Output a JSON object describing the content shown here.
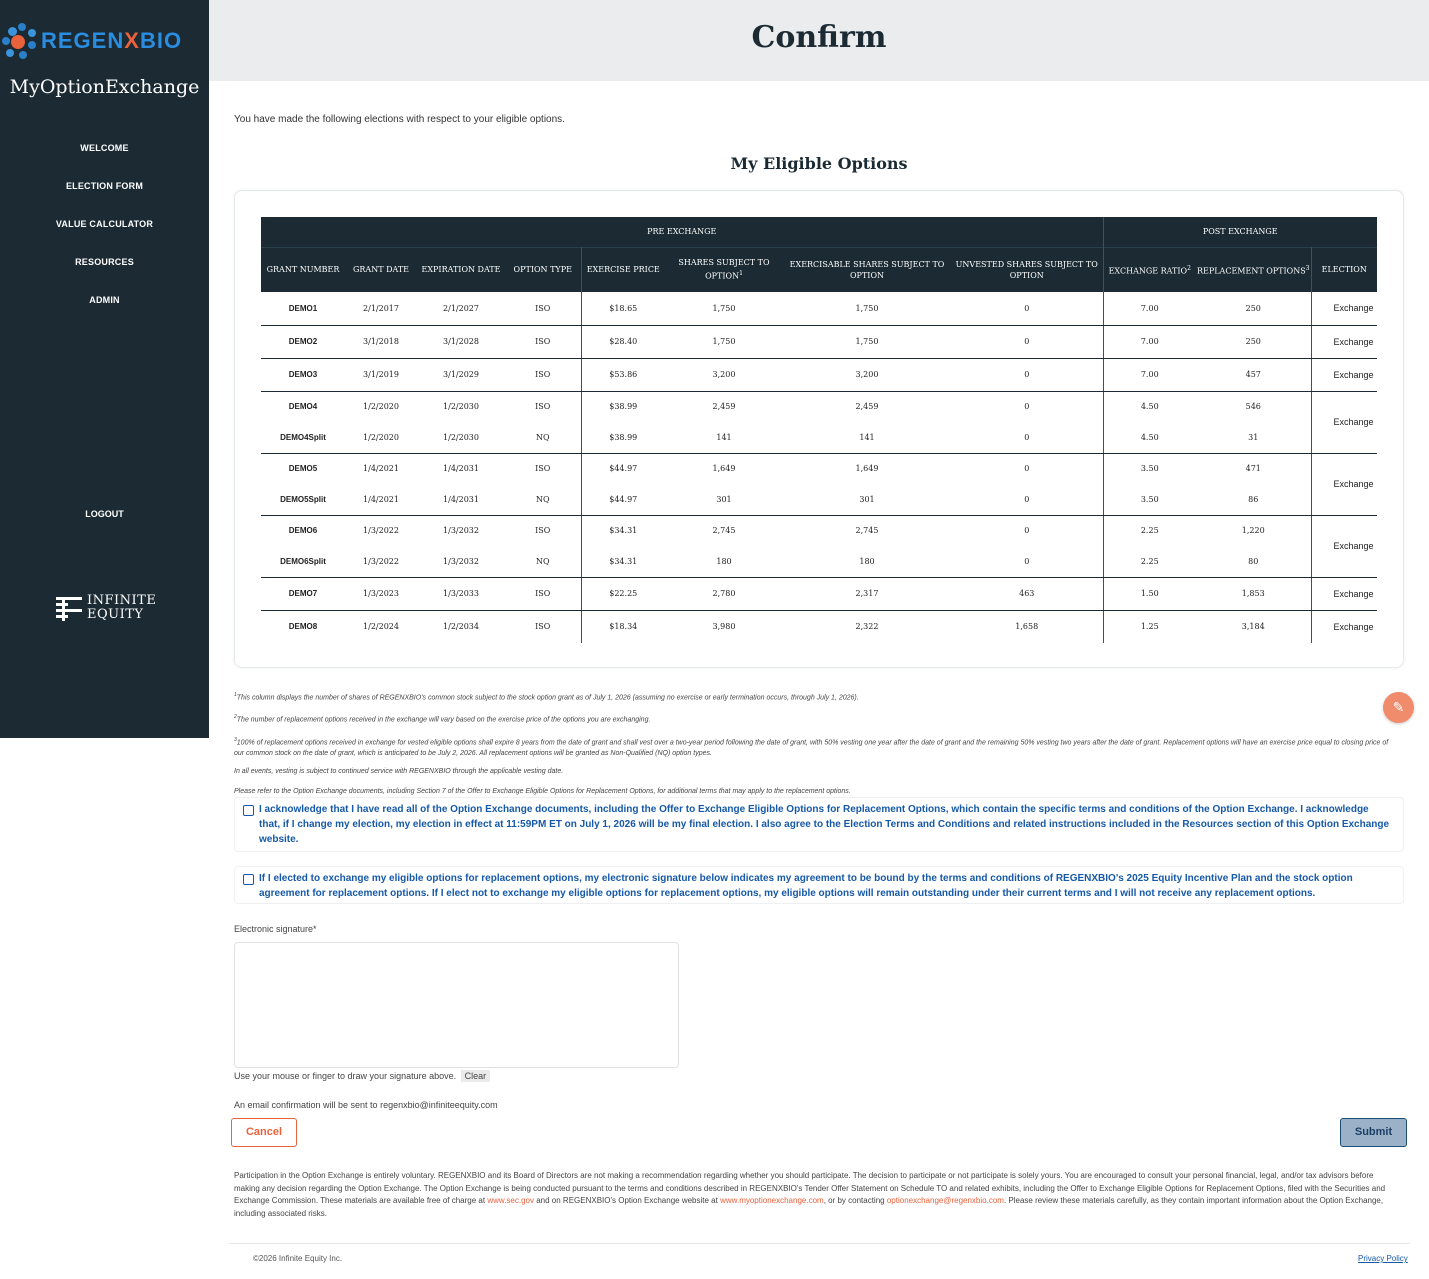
{
  "brand": {
    "logo_prefix": "REGEN",
    "logo_x": "X",
    "logo_suffix": "BIO",
    "app_name": "MyOptionExchange",
    "vendor_line1": "INFINITE",
    "vendor_line2": "EQUITY"
  },
  "nav": {
    "items": [
      "WELCOME",
      "ELECTION FORM",
      "VALUE CALCULATOR",
      "RESOURCES",
      "ADMIN"
    ],
    "logout": "LOGOUT"
  },
  "header": {
    "title": "Confirm"
  },
  "intro": "You have made the following elections with respect to your eligible options.",
  "section_title": "My Eligible Options",
  "table": {
    "group_pre": "PRE EXCHANGE",
    "group_post": "POST EXCHANGE",
    "columns": {
      "grant_number": "GRANT NUMBER",
      "grant_date": "GRANT DATE",
      "expiration_date": "EXPIRATION DATE",
      "option_type": "OPTION TYPE",
      "exercise_price": "EXERCISE PRICE",
      "shares_subject": "SHARES SUBJECT TO OPTION",
      "shares_sup": "1",
      "exercisable": "EXERCISABLE SHARES SUBJECT TO OPTION",
      "unvested": "UNVESTED SHARES SUBJECT TO OPTION",
      "exchange_ratio": "EXCHANGE RATIO",
      "ratio_sup": "2",
      "replacement": "REPLACEMENT OPTIONS",
      "replacement_sup": "3",
      "election": "ELECTION"
    },
    "rows": [
      [
        "DEMO1",
        "2/1/2017",
        "2/1/2027",
        "ISO",
        "$18.65",
        "1,750",
        "1,750",
        "0",
        "7.00",
        "250"
      ],
      [
        "DEMO2",
        "3/1/2018",
        "3/1/2028",
        "ISO",
        "$28.40",
        "1,750",
        "1,750",
        "0",
        "7.00",
        "250"
      ],
      [
        "DEMO3",
        "3/1/2019",
        "3/1/2029",
        "ISO",
        "$53.86",
        "3,200",
        "3,200",
        "0",
        "7.00",
        "457"
      ],
      [
        "DEMO4",
        "1/2/2020",
        "1/2/2030",
        "ISO",
        "$38.99",
        "2,459",
        "2,459",
        "0",
        "4.50",
        "546"
      ],
      [
        "DEMO4Split",
        "1/2/2020",
        "1/2/2030",
        "NQ",
        "$38.99",
        "141",
        "141",
        "0",
        "4.50",
        "31"
      ],
      [
        "DEMO5",
        "1/4/2021",
        "1/4/2031",
        "ISO",
        "$44.97",
        "1,649",
        "1,649",
        "0",
        "3.50",
        "471"
      ],
      [
        "DEMO5Split",
        "1/4/2021",
        "1/4/2031",
        "NQ",
        "$44.97",
        "301",
        "301",
        "0",
        "3.50",
        "86"
      ],
      [
        "DEMO6",
        "1/3/2022",
        "1/3/2032",
        "ISO",
        "$34.31",
        "2,745",
        "2,745",
        "0",
        "2.25",
        "1,220"
      ],
      [
        "DEMO6Split",
        "1/3/2022",
        "1/3/2032",
        "NQ",
        "$34.31",
        "180",
        "180",
        "0",
        "2.25",
        "80"
      ],
      [
        "DEMO7",
        "1/3/2023",
        "1/3/2033",
        "ISO",
        "$22.25",
        "2,780",
        "2,317",
        "463",
        "1.50",
        "1,853"
      ],
      [
        "DEMO8",
        "1/2/2024",
        "1/2/2034",
        "ISO",
        "$18.34",
        "3,980",
        "2,322",
        "1,658",
        "1.25",
        "3,184"
      ]
    ],
    "elections": [
      "Exchange",
      "Exchange",
      "Exchange",
      "Exchange",
      "Exchange",
      "Exchange",
      "Exchange",
      "Exchange"
    ]
  },
  "notes": {
    "n1_sup": "1",
    "n1": "This column displays the number of shares of REGENXBIO's common stock subject to the stock option grant as of July 1, 2026 (assuming no exercise or early termination occurs, through July 1, 2026).",
    "n2_sup": "2",
    "n2": "The number of replacement options received in the exchange will vary based on the exercise price of the options you are exchanging.",
    "n3_sup": "3",
    "n3": "100% of replacement options received in exchange for vested eligible options shall expire 8 years from the date of grant and shall vest over a two-year period following the date of grant, with 50% vesting one year after the date of grant and the remaining 50% vesting two years after the date of grant. Replacement options will have an exercise price equal to closing price of our common stock on the date of grant, which is anticipated to be July 2, 2026. All replacement options will be granted as Non-Qualified (NQ) option types.",
    "n4": "In all events, vesting is subject to continued service with REGENXBIO through the applicable vesting date.",
    "n5": "Please refer to the Option Exchange documents, including Section 7 of the Offer to Exchange Eligible Options for Replacement Options, for additional terms that may apply to the replacement options."
  },
  "acknowledgements": {
    "ack1": "I acknowledge that I have read all of the Option Exchange documents, including the Offer to Exchange Eligible Options for Replacement Options, which contain the specific terms and conditions of the Option Exchange. I acknowledge that, if I change my election, my election in effect at 11:59PM ET on July 1, 2026 will be my final election. I also agree to the Election Terms and Conditions and related instructions included in the Resources section of this Option Exchange website.",
    "ack2": "If I elected to exchange my eligible options for replacement options, my electronic signature below indicates my agreement to be bound by the terms and conditions of REGENXBIO's 2025 Equity Incentive Plan and the stock option agreement for replacement options. If I elect not to exchange my eligible options for replacement options, my eligible options will remain outstanding under their current terms and I will not receive any replacement options."
  },
  "signature": {
    "label": "Electronic signature*",
    "help": "Use your mouse or finger to draw your signature above.",
    "clear": "Clear",
    "email_note": "An email confirmation will be sent to regenxbio@infiniteequity.com"
  },
  "buttons": {
    "cancel": "Cancel",
    "submit": "Submit"
  },
  "disclaimer": {
    "part1": "Participation in the Option Exchange is entirely voluntary. REGENXBIO and its Board of Directors are not making a recommendation regarding whether you should participate. The decision to participate or not participate is solely yours. You are encouraged to consult your personal financial, legal, and/or tax advisors before making any decision regarding the Option Exchange. The Option Exchange is being conducted pursuant to the terms and conditions described in REGENXBIO's Tender Offer Statement on Schedule TO and related exhibits, including the Offer to Exchange Eligible Options for Replacement Options, filed with the Securities and Exchange Commission. These materials are available free of charge at ",
    "link1": "www.sec.gov",
    "part2": " and on REGENXBIO's Option Exchange website at ",
    "link2": "www.myoptionexchange.com",
    "part3": ", or by contacting ",
    "link3": "optionexchange@regenxbio.com",
    "part4": ". Please review these materials carefully, as they contain important information about the Option Exchange, including associated risks."
  },
  "footer": {
    "copyright": "©2026 Infinite Equity Inc.",
    "privacy": "Privacy Policy"
  },
  "colors": {
    "sidebar": "#1b2a33",
    "accent_orange": "#e8623c",
    "link_blue": "#1659a8",
    "header_bg": "#ebeced"
  }
}
